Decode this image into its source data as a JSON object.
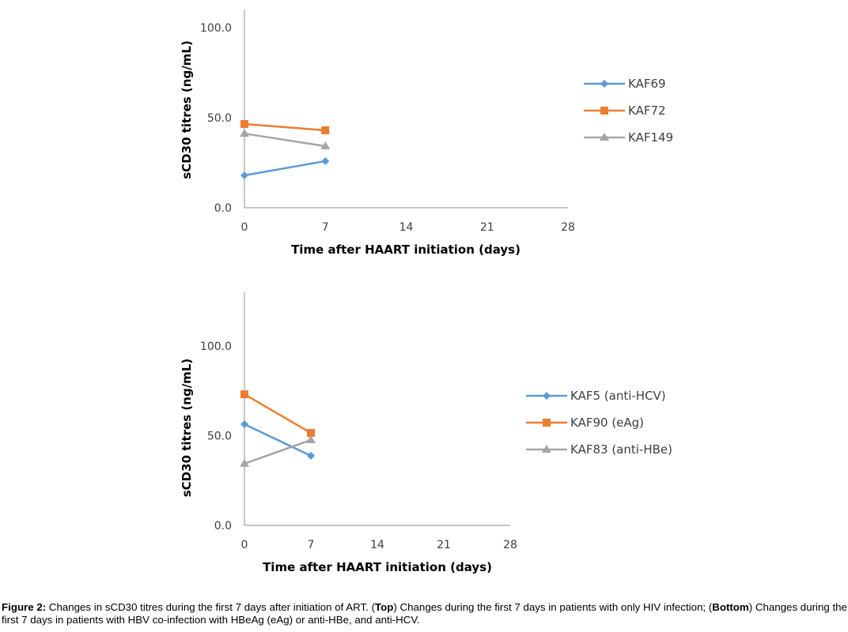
{
  "chart_data": [
    {
      "type": "line",
      "title": "",
      "panel": "Top",
      "xlabel": "Time after HAART initiation  (days)",
      "ylabel": "sCD30 titres  (ng/mL)",
      "x_ticks": [
        0,
        7,
        14,
        21,
        28
      ],
      "y_ticks": [
        "0.0",
        "50.0",
        "100.0"
      ],
      "xlim": [
        0,
        28
      ],
      "ylim": [
        0,
        110
      ],
      "grid": false,
      "legend_position": "right",
      "series": [
        {
          "name": "KAF69",
          "color": "#5B9BD5",
          "marker": "diamond",
          "x": [
            0,
            7
          ],
          "values": [
            18.0,
            25.9
          ]
        },
        {
          "name": "KAF72",
          "color": "#ED7D31",
          "marker": "square",
          "x": [
            0,
            7
          ],
          "values": [
            46.5,
            43.0
          ]
        },
        {
          "name": "KAF149",
          "color": "#A5A5A5",
          "marker": "triangle",
          "x": [
            0,
            7
          ],
          "values": [
            41.2,
            34.2
          ]
        }
      ]
    },
    {
      "type": "line",
      "title": "",
      "panel": "Bottom",
      "xlabel": "Time after HAART initiation  (days)",
      "ylabel": "sCD30 titres  (ng/mL)",
      "x_ticks": [
        0,
        7,
        14,
        21,
        28
      ],
      "y_ticks": [
        "0.0",
        "50.0",
        "100.0"
      ],
      "xlim": [
        0,
        28
      ],
      "ylim": [
        0,
        130
      ],
      "grid": false,
      "legend_position": "right",
      "series": [
        {
          "name": "KAF5 (anti-HCV)",
          "color": "#5B9BD5",
          "marker": "diamond",
          "x": [
            0,
            7
          ],
          "values": [
            56.4,
            38.8
          ]
        },
        {
          "name": "KAF90 (eAg)",
          "color": "#ED7D31",
          "marker": "square",
          "x": [
            0,
            7
          ],
          "values": [
            73.1,
            51.5
          ]
        },
        {
          "name": "KAF83 (anti-HBe)",
          "color": "#A5A5A5",
          "marker": "triangle",
          "x": [
            0,
            7
          ],
          "values": [
            34.4,
            47.6
          ]
        }
      ]
    }
  ],
  "caption": {
    "label": "Figure 2:",
    "part1": " Changes in sCD30 titres during the first 7 days after initiation of ART. (",
    "top_word": "Top",
    "part2": ") Changes during the first 7 days in patients with only HIV infection; (",
    "bottom_word": "Bottom",
    "part3": ") Changes during the first 7 days in patients with HBV co-infection with HBeAg (eAg) or anti-HBe, and anti-HCV."
  }
}
